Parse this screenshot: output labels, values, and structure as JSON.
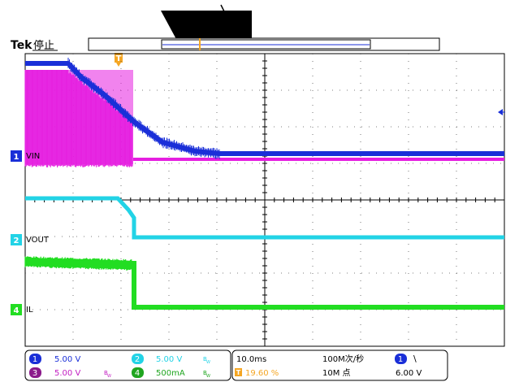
{
  "header": {
    "brand": "Tek",
    "state": "停止",
    "trigger_marker": "T"
  },
  "channels": [
    {
      "num": "1",
      "label": "VIN",
      "color": "#1a2fd8"
    },
    {
      "num": "2",
      "label": "VOUT",
      "color": "#22d3e6"
    },
    {
      "num": "3",
      "label": "",
      "color": "#e51ee0"
    },
    {
      "num": "4",
      "label": "IL",
      "color": "#22dd22"
    }
  ],
  "status": {
    "ch1_scale": "5.00 V",
    "ch2_scale": "5.00 V",
    "ch2_bw": "B",
    "ch3_scale": "5.00 V",
    "ch3_bw": "B",
    "ch4_scale": "500mA",
    "ch4_bw": "B",
    "timebase": "10.0ms",
    "trigger_pos": "19.60 %",
    "sample_rate": "100M次/秒",
    "record_length": "10M 点",
    "trig_source": "1",
    "trig_slope": "\\",
    "trig_level": "6.00 V"
  },
  "colors": {
    "ch1": "#1a2fd8",
    "ch2": "#22d3e6",
    "ch3": "#e51ee0",
    "ch4": "#22dd22",
    "trigger": "#f5a623",
    "grid": "#000000"
  }
}
